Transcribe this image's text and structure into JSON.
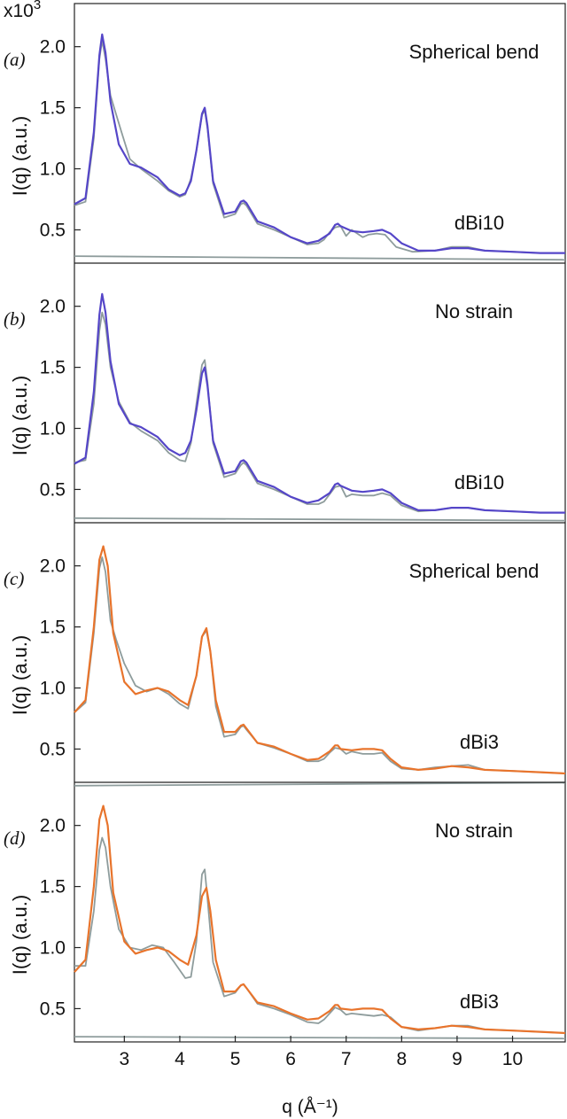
{
  "figure": {
    "exponent_base": "x10",
    "exponent_power": "3",
    "x_axis_label": "q (Å⁻¹)"
  },
  "chart_data": [
    {
      "type": "line",
      "panel_label": "(a)",
      "condition": "Spherical bend",
      "sample": "dBi10",
      "ylabel": "I(q) (a.u.)",
      "xlim": [
        2.1,
        10.95
      ],
      "ylim": [
        0.3,
        2.15
      ],
      "y_ticks": [
        0.5,
        1.0,
        1.5,
        2.0
      ],
      "y_tick_labels": [
        "0.5",
        "1.0",
        "1.5",
        "2.0"
      ],
      "colors": {
        "model": "#5546c8",
        "data": "#8e9c9c",
        "residual": "#8e9c9c"
      },
      "series": [
        {
          "role": "model",
          "x": [
            2.1,
            2.3,
            2.45,
            2.55,
            2.6,
            2.66,
            2.75,
            2.9,
            3.1,
            3.3,
            3.6,
            3.8,
            4.0,
            4.1,
            4.2,
            4.3,
            4.4,
            4.45,
            4.5,
            4.6,
            4.8,
            5.0,
            5.1,
            5.15,
            5.2,
            5.4,
            5.7,
            6.0,
            6.3,
            6.5,
            6.7,
            6.8,
            6.85,
            6.9,
            7.1,
            7.3,
            7.5,
            7.65,
            7.8,
            8.0,
            8.3,
            8.6,
            8.9,
            9.2,
            9.5,
            10.0,
            10.5,
            10.95
          ],
          "y": [
            0.71,
            0.76,
            1.3,
            1.93,
            2.1,
            1.95,
            1.55,
            1.2,
            1.04,
            1.01,
            0.93,
            0.83,
            0.78,
            0.8,
            0.9,
            1.15,
            1.45,
            1.5,
            1.35,
            0.9,
            0.63,
            0.65,
            0.73,
            0.74,
            0.72,
            0.57,
            0.52,
            0.44,
            0.39,
            0.41,
            0.47,
            0.54,
            0.55,
            0.53,
            0.49,
            0.48,
            0.49,
            0.5,
            0.47,
            0.39,
            0.33,
            0.33,
            0.35,
            0.35,
            0.33,
            0.32,
            0.31,
            0.31
          ]
        },
        {
          "role": "data",
          "x": [
            2.1,
            2.3,
            2.45,
            2.55,
            2.6,
            2.66,
            2.75,
            2.85,
            2.95,
            3.1,
            3.3,
            3.6,
            3.8,
            4.0,
            4.1,
            4.2,
            4.3,
            4.4,
            4.45,
            4.5,
            4.6,
            4.8,
            5.0,
            5.1,
            5.15,
            5.2,
            5.4,
            5.7,
            6.0,
            6.3,
            6.5,
            6.6,
            6.7,
            6.8,
            6.9,
            7.0,
            7.1,
            7.3,
            7.4,
            7.55,
            7.7,
            7.9,
            8.2,
            8.6,
            8.9,
            9.2,
            9.5,
            10.0,
            10.5,
            10.95
          ],
          "y": [
            0.7,
            0.73,
            1.25,
            1.9,
            2.05,
            1.9,
            1.6,
            1.45,
            1.3,
            1.08,
            1.0,
            0.9,
            0.82,
            0.77,
            0.79,
            0.92,
            1.15,
            1.44,
            1.48,
            1.33,
            0.88,
            0.6,
            0.63,
            0.71,
            0.72,
            0.7,
            0.55,
            0.5,
            0.44,
            0.38,
            0.39,
            0.42,
            0.48,
            0.52,
            0.53,
            0.45,
            0.5,
            0.44,
            0.46,
            0.47,
            0.46,
            0.36,
            0.32,
            0.33,
            0.36,
            0.36,
            0.33,
            0.32,
            0.31,
            0.31
          ]
        },
        {
          "role": "residual",
          "x": [
            2.1,
            10.95
          ],
          "y": [
            0.285,
            0.255
          ]
        }
      ]
    },
    {
      "type": "line",
      "panel_label": "(b)",
      "condition": "No strain",
      "sample": "dBi10",
      "ylabel": "I(q) (a.u.)",
      "xlim": [
        2.1,
        10.95
      ],
      "ylim": [
        0.3,
        2.15
      ],
      "y_ticks": [
        0.5,
        1.0,
        1.5,
        2.0
      ],
      "y_tick_labels": [
        "0.5",
        "1.0",
        "1.5",
        "2.0"
      ],
      "colors": {
        "model": "#5546c8",
        "data": "#8e9c9c",
        "residual": "#8e9c9c"
      },
      "series": [
        {
          "role": "model",
          "x": [
            2.1,
            2.3,
            2.45,
            2.55,
            2.6,
            2.66,
            2.75,
            2.9,
            3.1,
            3.3,
            3.6,
            3.8,
            4.0,
            4.1,
            4.2,
            4.3,
            4.4,
            4.45,
            4.5,
            4.6,
            4.8,
            5.0,
            5.1,
            5.15,
            5.2,
            5.4,
            5.7,
            6.0,
            6.3,
            6.5,
            6.7,
            6.8,
            6.85,
            6.9,
            7.1,
            7.3,
            7.5,
            7.65,
            7.8,
            8.0,
            8.3,
            8.6,
            8.9,
            9.2,
            9.5,
            10.0,
            10.5,
            10.95
          ],
          "y": [
            0.71,
            0.76,
            1.3,
            1.93,
            2.1,
            1.95,
            1.55,
            1.2,
            1.04,
            1.01,
            0.93,
            0.83,
            0.78,
            0.8,
            0.9,
            1.15,
            1.45,
            1.5,
            1.35,
            0.9,
            0.63,
            0.65,
            0.73,
            0.74,
            0.72,
            0.57,
            0.52,
            0.44,
            0.39,
            0.41,
            0.47,
            0.54,
            0.55,
            0.53,
            0.49,
            0.48,
            0.49,
            0.5,
            0.47,
            0.39,
            0.33,
            0.33,
            0.35,
            0.35,
            0.33,
            0.32,
            0.31,
            0.31
          ]
        },
        {
          "role": "data",
          "x": [
            2.1,
            2.3,
            2.45,
            2.55,
            2.6,
            2.66,
            2.75,
            2.9,
            3.1,
            3.3,
            3.6,
            3.8,
            4.0,
            4.1,
            4.2,
            4.3,
            4.4,
            4.45,
            4.5,
            4.6,
            4.8,
            5.0,
            5.1,
            5.15,
            5.2,
            5.4,
            5.7,
            6.0,
            6.3,
            6.5,
            6.6,
            6.7,
            6.8,
            6.9,
            7.0,
            7.1,
            7.3,
            7.5,
            7.65,
            7.8,
            8.0,
            8.3,
            8.6,
            8.9,
            9.2,
            9.5,
            10.0,
            10.5,
            10.95
          ],
          "y": [
            0.72,
            0.74,
            1.2,
            1.8,
            1.95,
            1.85,
            1.5,
            1.22,
            1.05,
            0.98,
            0.9,
            0.8,
            0.74,
            0.73,
            0.88,
            1.2,
            1.52,
            1.56,
            1.38,
            0.88,
            0.6,
            0.63,
            0.7,
            0.72,
            0.7,
            0.55,
            0.5,
            0.44,
            0.38,
            0.38,
            0.4,
            0.46,
            0.52,
            0.53,
            0.44,
            0.46,
            0.45,
            0.45,
            0.47,
            0.45,
            0.37,
            0.32,
            0.33,
            0.35,
            0.35,
            0.33,
            0.32,
            0.31,
            0.31
          ]
        },
        {
          "role": "residual",
          "x": [
            2.1,
            10.95
          ],
          "y": [
            0.265,
            0.245
          ]
        }
      ]
    },
    {
      "type": "line",
      "panel_label": "(c)",
      "condition": "Spherical bend",
      "sample": "dBi3",
      "ylabel": "I(q) (a.u.)",
      "xlim": [
        2.1,
        10.95
      ],
      "ylim": [
        0.3,
        2.15
      ],
      "y_ticks": [
        0.5,
        1.0,
        1.5,
        2.0
      ],
      "y_tick_labels": [
        "0.5",
        "1.0",
        "1.5",
        "2.0"
      ],
      "colors": {
        "model": "#e8742c",
        "data": "#8e9c9c",
        "residual": "#8e9c9c"
      },
      "series": [
        {
          "role": "model",
          "x": [
            2.1,
            2.3,
            2.45,
            2.55,
            2.62,
            2.7,
            2.8,
            3.0,
            3.2,
            3.4,
            3.6,
            3.8,
            4.0,
            4.15,
            4.3,
            4.4,
            4.48,
            4.55,
            4.65,
            4.8,
            5.0,
            5.1,
            5.15,
            5.2,
            5.4,
            5.7,
            6.0,
            6.3,
            6.5,
            6.7,
            6.8,
            6.85,
            6.9,
            7.1,
            7.3,
            7.5,
            7.65,
            7.8,
            8.0,
            8.3,
            8.6,
            8.9,
            9.2,
            9.5,
            10.0,
            10.5,
            10.95
          ],
          "y": [
            0.8,
            0.9,
            1.5,
            2.05,
            2.16,
            2.0,
            1.45,
            1.05,
            0.95,
            0.98,
            1.0,
            0.97,
            0.9,
            0.86,
            1.1,
            1.42,
            1.49,
            1.3,
            0.9,
            0.64,
            0.64,
            0.69,
            0.7,
            0.67,
            0.55,
            0.52,
            0.46,
            0.41,
            0.42,
            0.48,
            0.53,
            0.53,
            0.5,
            0.49,
            0.5,
            0.5,
            0.49,
            0.42,
            0.35,
            0.33,
            0.34,
            0.36,
            0.35,
            0.33,
            0.32,
            0.31,
            0.3
          ]
        },
        {
          "role": "data",
          "x": [
            2.1,
            2.3,
            2.45,
            2.55,
            2.6,
            2.66,
            2.75,
            2.85,
            3.0,
            3.2,
            3.4,
            3.6,
            3.8,
            4.0,
            4.15,
            4.3,
            4.4,
            4.48,
            4.55,
            4.65,
            4.8,
            5.0,
            5.1,
            5.15,
            5.2,
            5.4,
            5.7,
            6.0,
            6.3,
            6.5,
            6.6,
            6.7,
            6.8,
            6.9,
            7.0,
            7.1,
            7.3,
            7.5,
            7.65,
            7.8,
            8.0,
            8.3,
            8.6,
            8.9,
            9.2,
            9.5,
            10.0,
            10.5,
            10.95
          ],
          "y": [
            0.8,
            0.88,
            1.45,
            1.98,
            2.07,
            1.95,
            1.55,
            1.4,
            1.2,
            1.02,
            0.97,
            1.0,
            0.95,
            0.87,
            0.83,
            1.1,
            1.42,
            1.47,
            1.3,
            0.85,
            0.6,
            0.62,
            0.68,
            0.69,
            0.66,
            0.55,
            0.51,
            0.46,
            0.4,
            0.4,
            0.42,
            0.47,
            0.51,
            0.5,
            0.46,
            0.48,
            0.46,
            0.46,
            0.47,
            0.4,
            0.34,
            0.33,
            0.35,
            0.36,
            0.37,
            0.33,
            0.32,
            0.31,
            0.3
          ]
        },
        {
          "role": "residual",
          "x": [
            2.1,
            10.95
          ],
          "y": [
            0.2,
            0.225
          ]
        }
      ]
    },
    {
      "type": "line",
      "panel_label": "(d)",
      "condition": "No strain",
      "sample": "dBi3",
      "ylabel": "I(q) (a.u.)",
      "xlim": [
        2.1,
        10.95
      ],
      "ylim": [
        0.3,
        2.15
      ],
      "y_ticks": [
        0.5,
        1.0,
        1.5,
        2.0
      ],
      "y_tick_labels": [
        "0.5",
        "1.0",
        "1.5",
        "2.0"
      ],
      "colors": {
        "model": "#e8742c",
        "data": "#8e9c9c",
        "residual": "#8e9c9c"
      },
      "series": [
        {
          "role": "model",
          "x": [
            2.1,
            2.3,
            2.45,
            2.55,
            2.62,
            2.7,
            2.8,
            3.0,
            3.2,
            3.4,
            3.6,
            3.8,
            4.0,
            4.15,
            4.3,
            4.4,
            4.48,
            4.55,
            4.65,
            4.8,
            5.0,
            5.1,
            5.15,
            5.2,
            5.4,
            5.7,
            6.0,
            6.3,
            6.5,
            6.7,
            6.8,
            6.85,
            6.9,
            7.1,
            7.3,
            7.5,
            7.65,
            7.8,
            8.0,
            8.3,
            8.6,
            8.9,
            9.2,
            9.5,
            10.0,
            10.5,
            10.95
          ],
          "y": [
            0.8,
            0.9,
            1.5,
            2.05,
            2.16,
            2.0,
            1.45,
            1.05,
            0.95,
            0.98,
            1.0,
            0.97,
            0.9,
            0.86,
            1.1,
            1.42,
            1.49,
            1.3,
            0.9,
            0.64,
            0.64,
            0.69,
            0.7,
            0.67,
            0.55,
            0.52,
            0.46,
            0.41,
            0.42,
            0.48,
            0.53,
            0.53,
            0.5,
            0.49,
            0.5,
            0.5,
            0.49,
            0.42,
            0.35,
            0.33,
            0.34,
            0.36,
            0.35,
            0.33,
            0.32,
            0.31,
            0.3
          ]
        },
        {
          "role": "data",
          "x": [
            2.1,
            2.3,
            2.45,
            2.55,
            2.6,
            2.66,
            2.75,
            2.9,
            3.1,
            3.3,
            3.5,
            3.7,
            3.9,
            4.1,
            4.2,
            4.3,
            4.4,
            4.45,
            4.5,
            4.6,
            4.8,
            5.0,
            5.1,
            5.15,
            5.2,
            5.4,
            5.7,
            6.0,
            6.3,
            6.5,
            6.6,
            6.7,
            6.8,
            6.9,
            7.0,
            7.1,
            7.3,
            7.5,
            7.65,
            7.8,
            8.0,
            8.3,
            8.6,
            8.9,
            9.2,
            9.5,
            10.0,
            10.5,
            10.95
          ],
          "y": [
            0.85,
            0.85,
            1.3,
            1.8,
            1.9,
            1.82,
            1.5,
            1.15,
            1.0,
            0.98,
            1.02,
            1.0,
            0.88,
            0.75,
            0.76,
            1.05,
            1.6,
            1.64,
            1.4,
            0.88,
            0.6,
            0.63,
            0.69,
            0.7,
            0.67,
            0.54,
            0.5,
            0.45,
            0.39,
            0.38,
            0.41,
            0.46,
            0.51,
            0.49,
            0.45,
            0.46,
            0.45,
            0.44,
            0.45,
            0.43,
            0.35,
            0.32,
            0.34,
            0.36,
            0.36,
            0.33,
            0.32,
            0.31,
            0.3
          ]
        },
        {
          "role": "residual",
          "x": [
            2.1,
            10.95
          ],
          "y": [
            0.27,
            0.255
          ]
        }
      ]
    }
  ],
  "x_axis": {
    "ticks": [
      3,
      4,
      5,
      6,
      7,
      8,
      9,
      10
    ],
    "tick_labels": [
      "3",
      "4",
      "5",
      "6",
      "7",
      "8",
      "9",
      "10"
    ]
  }
}
